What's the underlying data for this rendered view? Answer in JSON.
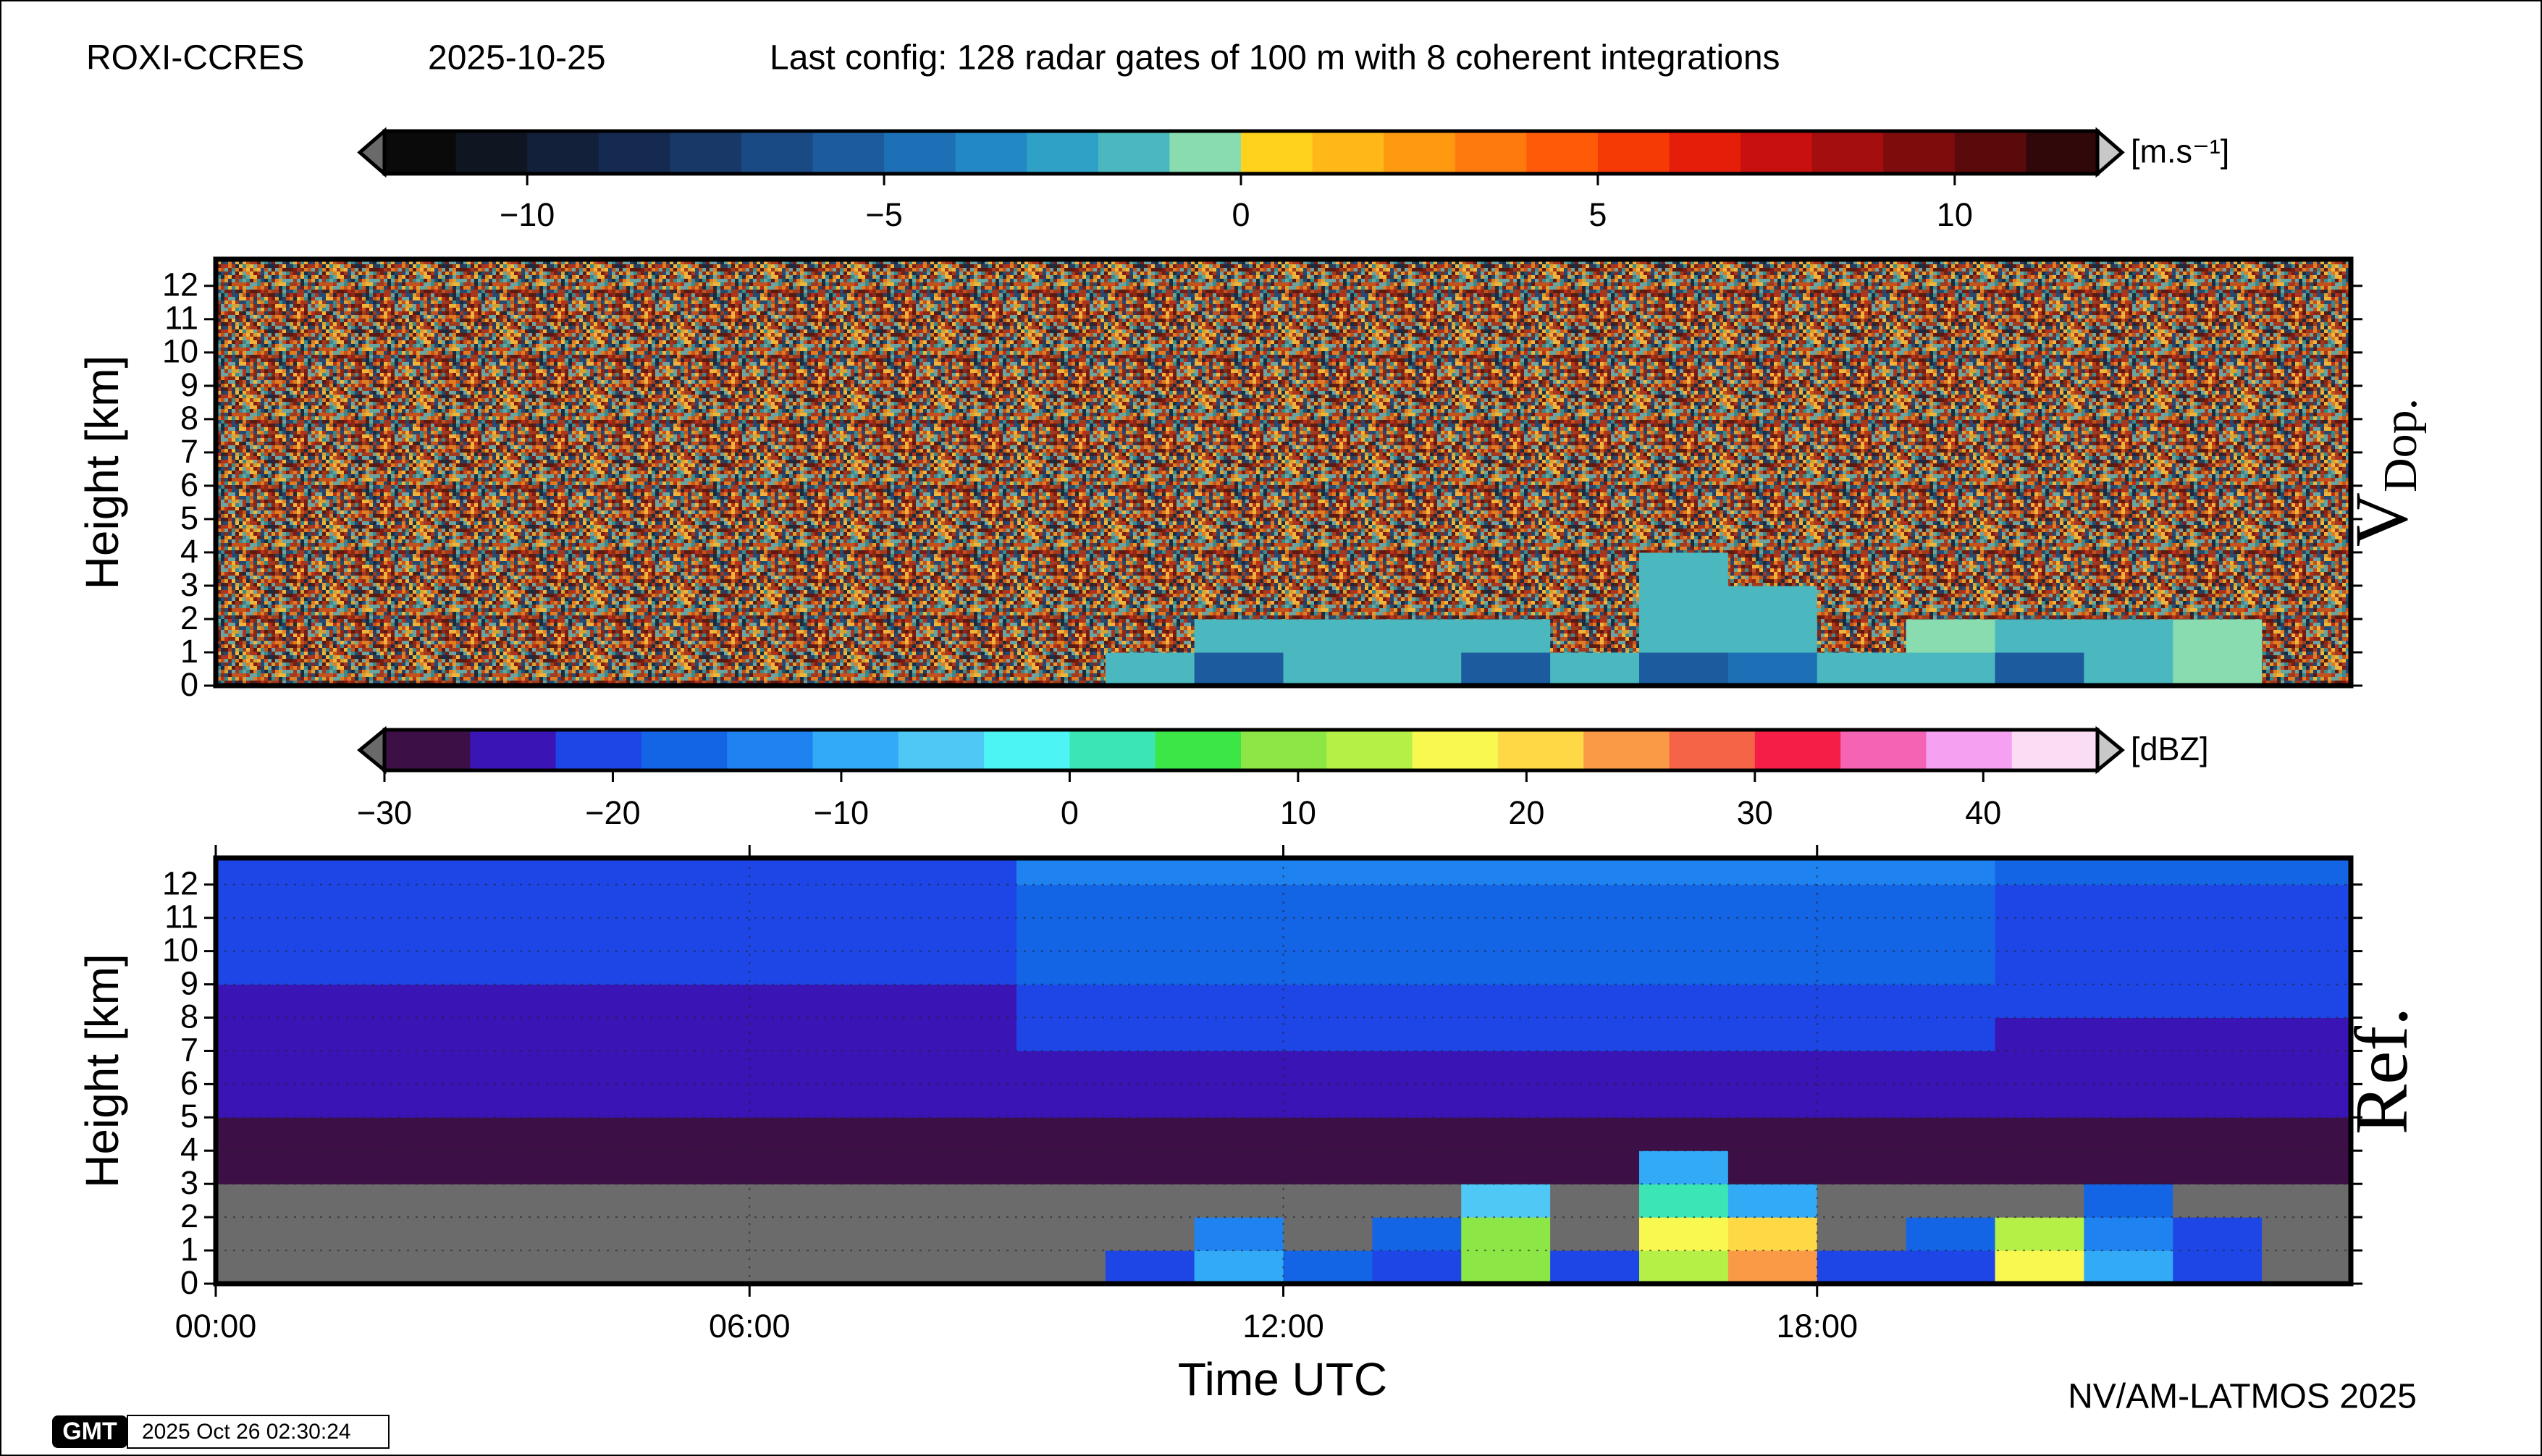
{
  "header": {
    "site": "ROXI-CCRES",
    "date": "2025-10-25",
    "config": "Last config: 128 radar gates of 100 m with 8 coherent integrations"
  },
  "footer": {
    "credit": "NV/AM-LATMOS 2025",
    "logo": "GMT",
    "timestamp": "2025 Oct 26 02:30:24"
  },
  "chart_data": [
    {
      "type": "heatmap",
      "panel_label": "V",
      "panel_label_sub": "Dop.",
      "ylabel": "Height [km]",
      "xlim": [
        0,
        24
      ],
      "ylim": [
        0,
        12.8
      ],
      "yticks": [
        0,
        1,
        2,
        3,
        4,
        5,
        6,
        7,
        8,
        9,
        10,
        11,
        12
      ],
      "x_edges": [
        0,
        1,
        2,
        3,
        4,
        5,
        6,
        7,
        8,
        9,
        10,
        11,
        12,
        13,
        14,
        15,
        16,
        17,
        18,
        19,
        20,
        21,
        22,
        23,
        24
      ],
      "y_edges": [
        0,
        1,
        2,
        3,
        4,
        5,
        6,
        7,
        8,
        9,
        10,
        11,
        12,
        12.8
      ],
      "colorbar": {
        "unit": "[m.s⁻¹]",
        "lim": [
          -12,
          12
        ],
        "ticks": [
          {
            "value": -10,
            "label": "−10"
          },
          {
            "value": -5,
            "label": "−5"
          },
          0,
          5,
          10
        ],
        "colors": [
          "#0a0a0a",
          "#101522",
          "#13203a",
          "#152a50",
          "#183868",
          "#1a4a84",
          "#1c5c9e",
          "#1e70b6",
          "#2388c6",
          "#2fa0c6",
          "#4ab8be",
          "#88dcb0",
          "#ffd21e",
          "#ffb818",
          "#ff9a10",
          "#ff7a0c",
          "#ff5a08",
          "#f53a06",
          "#e51e0a",
          "#c8100e",
          "#a40e0e",
          "#7e0c0c",
          "#5a0a0a",
          "#30080a"
        ]
      },
      "z": [
        [
          null,
          null,
          null,
          null,
          null,
          null,
          null,
          null,
          null,
          null,
          -2,
          -6,
          -1.5,
          -1.5,
          -6,
          -1.5,
          -6,
          -5,
          -1.5,
          -1.5,
          -6,
          -2,
          -1,
          null
        ],
        [
          null,
          null,
          null,
          null,
          null,
          null,
          null,
          null,
          null,
          null,
          null,
          -2,
          -1.5,
          -1.5,
          -2,
          null,
          -2,
          -2,
          null,
          -1,
          -2,
          -1.5,
          -1,
          null
        ],
        [
          null,
          null,
          null,
          null,
          null,
          null,
          null,
          null,
          null,
          null,
          null,
          null,
          null,
          null,
          null,
          null,
          -1.5,
          -1.5,
          null,
          null,
          null,
          null,
          null,
          null
        ],
        [
          null,
          null,
          null,
          null,
          null,
          null,
          null,
          null,
          null,
          null,
          null,
          null,
          null,
          null,
          null,
          null,
          -1.5,
          null,
          null,
          null,
          null,
          null,
          null,
          null
        ],
        [
          null,
          null,
          null,
          null,
          null,
          null,
          null,
          null,
          null,
          null,
          null,
          null,
          null,
          null,
          null,
          null,
          null,
          null,
          null,
          null,
          null,
          null,
          null,
          null
        ],
        [
          null,
          null,
          null,
          null,
          null,
          null,
          null,
          null,
          null,
          null,
          null,
          null,
          null,
          null,
          null,
          null,
          null,
          null,
          null,
          null,
          null,
          null,
          null,
          null
        ],
        [
          null,
          null,
          null,
          null,
          null,
          null,
          null,
          null,
          null,
          null,
          null,
          null,
          null,
          null,
          null,
          null,
          null,
          null,
          null,
          null,
          null,
          null,
          null,
          null
        ],
        [
          null,
          null,
          null,
          null,
          null,
          null,
          null,
          null,
          null,
          null,
          null,
          null,
          null,
          null,
          null,
          null,
          null,
          null,
          null,
          null,
          null,
          null,
          null,
          null
        ],
        [
          null,
          null,
          null,
          null,
          null,
          null,
          null,
          null,
          null,
          null,
          null,
          null,
          null,
          null,
          null,
          null,
          null,
          null,
          null,
          null,
          null,
          null,
          null,
          null
        ],
        [
          null,
          null,
          null,
          null,
          null,
          null,
          null,
          null,
          null,
          null,
          null,
          null,
          null,
          null,
          null,
          null,
          null,
          null,
          null,
          null,
          null,
          null,
          null,
          null
        ],
        [
          null,
          null,
          null,
          null,
          null,
          null,
          null,
          null,
          null,
          null,
          null,
          null,
          null,
          null,
          null,
          null,
          null,
          null,
          null,
          null,
          null,
          null,
          null,
          null
        ],
        [
          null,
          null,
          null,
          null,
          null,
          null,
          null,
          null,
          null,
          null,
          null,
          null,
          null,
          null,
          null,
          null,
          null,
          null,
          null,
          null,
          null,
          null,
          null,
          null
        ],
        [
          null,
          null,
          null,
          null,
          null,
          null,
          null,
          null,
          null,
          null,
          null,
          null,
          null,
          null,
          null,
          null,
          null,
          null,
          null,
          null,
          null,
          null,
          null,
          null
        ]
      ]
    },
    {
      "type": "heatmap",
      "panel_label": "Ref.",
      "ylabel": "Height [km]",
      "xlabel": "Time UTC",
      "xlim": [
        0,
        24
      ],
      "ylim": [
        0,
        12.8
      ],
      "yticks": [
        0,
        1,
        2,
        3,
        4,
        5,
        6,
        7,
        8,
        9,
        10,
        11,
        12
      ],
      "xticks": [
        {
          "value": 0,
          "label": "00:00"
        },
        {
          "value": 6,
          "label": "06:00"
        },
        {
          "value": 12,
          "label": "12:00"
        },
        {
          "value": 18,
          "label": "18:00"
        }
      ],
      "grid": true,
      "null_color": "#6b6b6b",
      "x_edges": [
        0,
        1,
        2,
        3,
        4,
        5,
        6,
        7,
        8,
        9,
        10,
        11,
        12,
        13,
        14,
        15,
        16,
        17,
        18,
        19,
        20,
        21,
        22,
        23,
        24
      ],
      "y_edges": [
        0,
        1,
        2,
        3,
        4,
        5,
        6,
        7,
        8,
        9,
        10,
        11,
        12,
        12.8
      ],
      "colorbar": {
        "unit": "[dBZ]",
        "lim": [
          -30,
          45
        ],
        "ticks": [
          {
            "value": -30,
            "label": "−30"
          },
          {
            "value": -20,
            "label": "−20"
          },
          {
            "value": -10,
            "label": "−10"
          },
          0,
          10,
          20,
          30,
          40
        ],
        "colors": [
          "#3c0f46",
          "#3a14b4",
          "#1e46e6",
          "#1464e6",
          "#1e82f0",
          "#32aaf5",
          "#50c8f5",
          "#4cf4f4",
          "#3ce6b4",
          "#3ce646",
          "#8ce646",
          "#b4f046",
          "#f8f850",
          "#ffd846",
          "#fa9a46",
          "#f56446",
          "#f51e46",
          "#f564b4",
          "#f5a0f0",
          "#fadcf5"
        ]
      },
      "z": [
        [
          null,
          null,
          null,
          null,
          null,
          null,
          null,
          null,
          null,
          null,
          -22,
          -10,
          -18,
          -20,
          10,
          -22,
          12,
          25,
          -20,
          -20,
          15,
          -10,
          -22,
          null
        ],
        [
          null,
          null,
          null,
          null,
          null,
          null,
          null,
          null,
          null,
          null,
          null,
          -12,
          null,
          -18,
          8,
          null,
          15,
          20,
          null,
          -16,
          12,
          -12,
          -20,
          null
        ],
        [
          null,
          null,
          null,
          null,
          null,
          null,
          null,
          null,
          null,
          null,
          null,
          null,
          null,
          null,
          -5,
          null,
          0,
          -8,
          null,
          null,
          null,
          -18,
          null,
          null
        ],
        [
          -28,
          -28,
          -28,
          -28,
          -28,
          -28,
          -28,
          -28,
          -28,
          -28,
          -28,
          -28,
          -28,
          -28,
          -28,
          -28,
          -10,
          -28,
          -28,
          -28,
          -28,
          -28,
          -28,
          -28
        ],
        [
          -27,
          -27,
          -27,
          -27,
          -27,
          -27,
          -27,
          -27,
          -27,
          -27,
          -27,
          -27,
          -27,
          -27,
          -27,
          -27,
          -27,
          -27,
          -27,
          -27,
          -27,
          -27,
          -27,
          -27
        ],
        [
          -26,
          -26,
          -26,
          -26,
          -26,
          -26,
          -26,
          -26,
          -26,
          -25,
          -25,
          -25,
          -25,
          -25,
          -25,
          -25,
          -25,
          -25,
          -25,
          -25,
          -26,
          -26,
          -26,
          -26
        ],
        [
          -25,
          -25,
          -25,
          -25,
          -25,
          -25,
          -25,
          -25,
          -25,
          -23,
          -23,
          -23,
          -23,
          -23,
          -23,
          -23,
          -23,
          -23,
          -23,
          -23,
          -25,
          -25,
          -25,
          -25
        ],
        [
          -24,
          -24,
          -24,
          -24,
          -24,
          -24,
          -24,
          -24,
          -24,
          -21,
          -21,
          -21,
          -21,
          -21,
          -21,
          -21,
          -21,
          -21,
          -21,
          -21,
          -24,
          -24,
          -24,
          -24
        ],
        [
          -23,
          -23,
          -23,
          -23,
          -23,
          -23,
          -23,
          -23,
          -23,
          -19,
          -19,
          -19,
          -19,
          -19,
          -19,
          -19,
          -19,
          -19,
          -19,
          -19,
          -22,
          -22,
          -22,
          -22
        ],
        [
          -22,
          -22,
          -22,
          -22,
          -22,
          -22,
          -22,
          -22,
          -22,
          -18,
          -18,
          -18,
          -18,
          -18,
          -18,
          -18,
          -18,
          -18,
          -18,
          -18,
          -21,
          -21,
          -21,
          -21
        ],
        [
          -21,
          -21,
          -21,
          -21,
          -21,
          -21,
          -21,
          -21,
          -21,
          -17,
          -17,
          -17,
          -17,
          -17,
          -17,
          -17,
          -17,
          -17,
          -17,
          -17,
          -20,
          -20,
          -20,
          -20
        ],
        [
          -20,
          -20,
          -20,
          -20,
          -20,
          -20,
          -20,
          -20,
          -20,
          -16,
          -16,
          -16,
          -16,
          -16,
          -16,
          -16,
          -16,
          -16,
          -16,
          -16,
          -19,
          -19,
          -19,
          -19
        ],
        [
          -19,
          -19,
          -19,
          -19,
          -19,
          -19,
          -19,
          -19,
          -19,
          -15,
          -15,
          -15,
          -15,
          -15,
          -15,
          -15,
          -15,
          -15,
          -15,
          -15,
          -18,
          -18,
          -18,
          -18
        ]
      ]
    }
  ]
}
